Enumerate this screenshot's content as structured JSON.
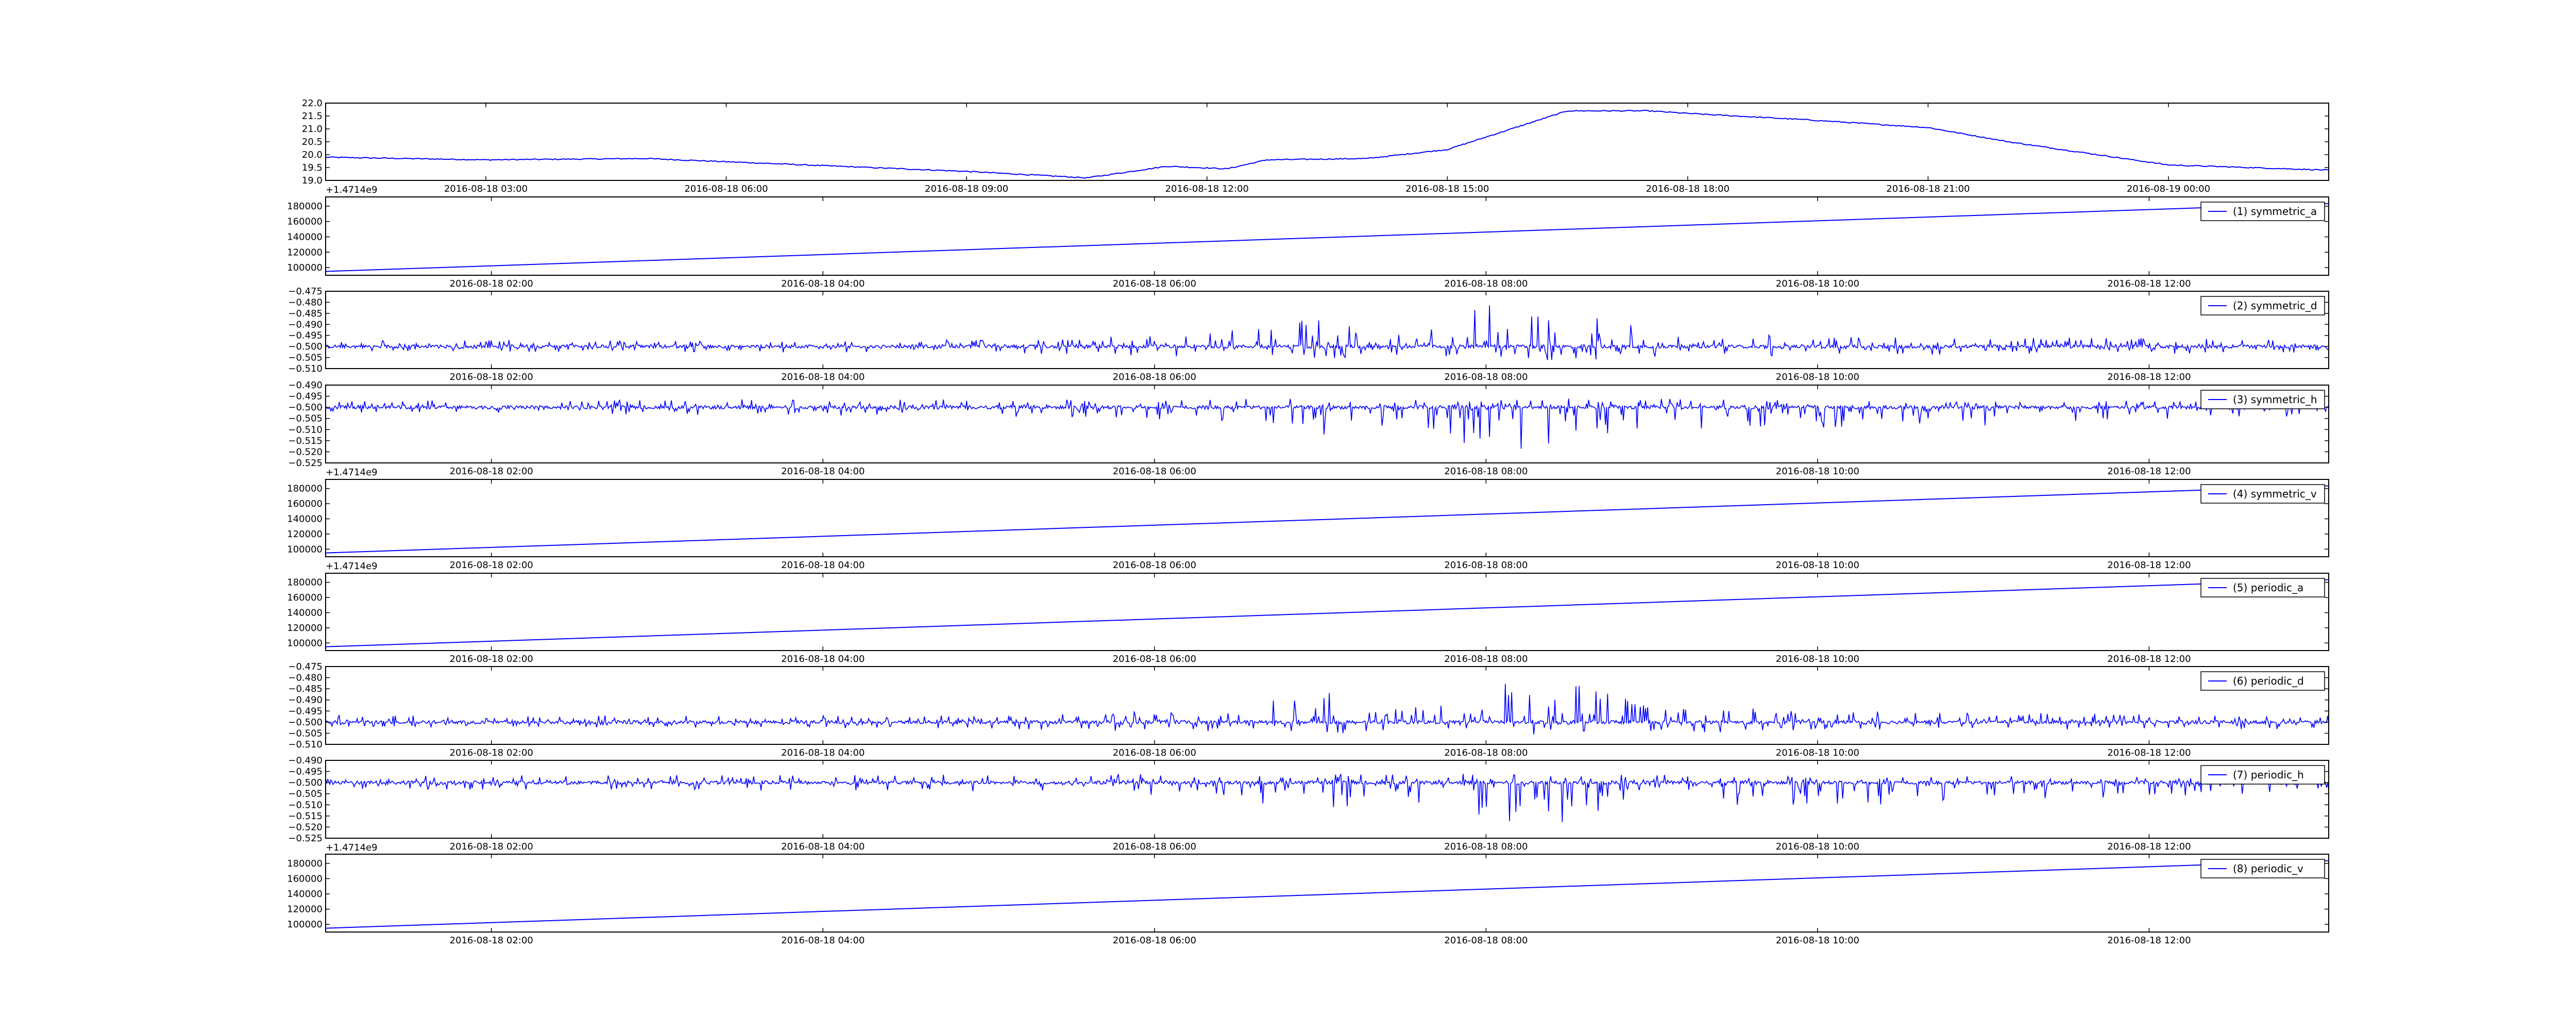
{
  "figure": {
    "background": "#ffffff",
    "line_color": "#0000ff",
    "frame_color": "#000000"
  },
  "chart_data": [
    {
      "type": "line",
      "title": "",
      "xlabel": "",
      "ylabel": "",
      "legend": null,
      "grid": false,
      "x_range": [
        "2016-08-18 01:00",
        "2016-08-19 02:00"
      ],
      "xticks": [
        "2016-08-18 03:00",
        "2016-08-18 06:00",
        "2016-08-18 09:00",
        "2016-08-18 12:00",
        "2016-08-18 15:00",
        "2016-08-18 18:00",
        "2016-08-18 21:00",
        "2016-08-19 00:00"
      ],
      "yticks": [
        "19.0",
        "19.5",
        "20.0",
        "20.5",
        "21.0",
        "21.5",
        "22.0"
      ],
      "ylim": [
        19.0,
        22.0
      ],
      "y_offset_label": "+1.4714e9",
      "series": [
        {
          "x": [
            "2016-08-18 01:00",
            "2016-08-18 03:00",
            "2016-08-18 05:00",
            "2016-08-18 07:00",
            "2016-08-18 09:00",
            "2016-08-18 10:30",
            "2016-08-18 11:30",
            "2016-08-18 12:15",
            "2016-08-18 12:45",
            "2016-08-18 14:00",
            "2016-08-18 15:00",
            "2016-08-18 15:45",
            "2016-08-18 16:30",
            "2016-08-18 17:30",
            "2016-08-18 18:00",
            "2016-08-18 19:30",
            "2016-08-18 21:00",
            "2016-08-18 22:00",
            "2016-08-19 00:00",
            "2016-08-19 02:00"
          ],
          "values": [
            19.9,
            19.8,
            19.85,
            19.6,
            19.35,
            19.1,
            19.55,
            19.45,
            19.8,
            19.85,
            20.2,
            20.95,
            21.7,
            21.7,
            21.6,
            21.35,
            21.05,
            20.5,
            19.6,
            19.4
          ]
        }
      ]
    },
    {
      "type": "line",
      "title": "",
      "xlabel": "",
      "ylabel": "",
      "grid": false,
      "x_range": [
        "2016-08-18 01:00",
        "2016-08-18 13:05"
      ],
      "xticks": [
        "2016-08-18 02:00",
        "2016-08-18 04:00",
        "2016-08-18 06:00",
        "2016-08-18 08:00",
        "2016-08-18 10:00",
        "2016-08-18 12:00"
      ],
      "yticks": [
        "100000",
        "120000",
        "140000",
        "160000",
        "180000"
      ],
      "ylim": [
        90000,
        192000
      ],
      "legend": {
        "placement": "upper right"
      },
      "series": [
        {
          "name": "(1) symmetric_a",
          "x": [
            "2016-08-18 01:00",
            "2016-08-18 13:05"
          ],
          "values": [
            95000,
            183500
          ]
        }
      ]
    },
    {
      "type": "line",
      "title": "",
      "xlabel": "",
      "ylabel": "",
      "grid": false,
      "x_range": [
        "2016-08-18 01:00",
        "2016-08-18 13:05"
      ],
      "xticks": [
        "2016-08-18 02:00",
        "2016-08-18 04:00",
        "2016-08-18 06:00",
        "2016-08-18 08:00",
        "2016-08-18 10:00",
        "2016-08-18 12:00"
      ],
      "yticks": [
        "−0.510",
        "−0.505",
        "−0.500",
        "−0.495",
        "−0.490",
        "−0.485",
        "−0.480",
        "−0.475"
      ],
      "ylim": [
        -0.51,
        -0.475
      ],
      "legend": {
        "placement": "upper right"
      },
      "series": [
        {
          "name": "(2) symmetric_d",
          "baseline": -0.5,
          "profile_x": [
            "2016-08-18 01:00",
            "2016-08-18 05:00",
            "2016-08-18 06:20",
            "2016-08-18 07:00",
            "2016-08-18 07:30",
            "2016-08-18 08:00",
            "2016-08-18 08:30",
            "2016-08-18 09:00",
            "2016-08-18 10:00",
            "2016-08-18 13:05"
          ],
          "up_extent": [
            0.003,
            0.003,
            0.006,
            0.014,
            0.006,
            0.019,
            0.018,
            0.008,
            0.005,
            0.003
          ],
          "down_extent": [
            0.002,
            0.003,
            0.005,
            0.006,
            0.004,
            0.006,
            0.007,
            0.005,
            0.004,
            0.003
          ]
        }
      ]
    },
    {
      "type": "line",
      "title": "",
      "xlabel": "",
      "ylabel": "",
      "grid": false,
      "x_range": [
        "2016-08-18 01:00",
        "2016-08-18 13:05"
      ],
      "xticks": [
        "2016-08-18 02:00",
        "2016-08-18 04:00",
        "2016-08-18 06:00",
        "2016-08-18 08:00",
        "2016-08-18 10:00",
        "2016-08-18 12:00"
      ],
      "yticks": [
        "−0.525",
        "−0.520",
        "−0.515",
        "−0.510",
        "−0.505",
        "−0.500",
        "−0.495",
        "−0.490"
      ],
      "ylim": [
        -0.525,
        -0.49
      ],
      "y_offset_label": "+1.4714e9",
      "legend": {
        "placement": "upper right"
      },
      "series": [
        {
          "name": "(3) symmetric_h",
          "baseline": -0.5,
          "profile_x": [
            "2016-08-18 01:00",
            "2016-08-18 05:00",
            "2016-08-18 06:20",
            "2016-08-18 07:00",
            "2016-08-18 07:30",
            "2016-08-18 08:00",
            "2016-08-18 08:30",
            "2016-08-18 09:00",
            "2016-08-18 10:00",
            "2016-08-18 13:05"
          ],
          "up_extent": [
            0.003,
            0.004,
            0.004,
            0.004,
            0.004,
            0.004,
            0.004,
            0.004,
            0.003,
            0.003
          ],
          "down_extent": [
            0.003,
            0.004,
            0.006,
            0.014,
            0.007,
            0.02,
            0.018,
            0.009,
            0.011,
            0.004
          ]
        }
      ]
    },
    {
      "type": "line",
      "title": "",
      "xlabel": "",
      "ylabel": "",
      "grid": false,
      "x_range": [
        "2016-08-18 01:00",
        "2016-08-18 13:05"
      ],
      "xticks": [
        "2016-08-18 02:00",
        "2016-08-18 04:00",
        "2016-08-18 06:00",
        "2016-08-18 08:00",
        "2016-08-18 10:00",
        "2016-08-18 12:00"
      ],
      "yticks": [
        "100000",
        "120000",
        "140000",
        "160000",
        "180000"
      ],
      "ylim": [
        90000,
        192000
      ],
      "y_offset_label": "+1.4714e9",
      "legend": {
        "placement": "upper right"
      },
      "series": [
        {
          "name": "(4) symmetric_v",
          "x": [
            "2016-08-18 01:00",
            "2016-08-18 13:05"
          ],
          "values": [
            95000,
            183500
          ]
        }
      ]
    },
    {
      "type": "line",
      "title": "",
      "xlabel": "",
      "ylabel": "",
      "grid": false,
      "x_range": [
        "2016-08-18 01:00",
        "2016-08-18 13:05"
      ],
      "xticks": [
        "2016-08-18 02:00",
        "2016-08-18 04:00",
        "2016-08-18 06:00",
        "2016-08-18 08:00",
        "2016-08-18 10:00",
        "2016-08-18 12:00"
      ],
      "yticks": [
        "100000",
        "120000",
        "140000",
        "160000",
        "180000"
      ],
      "ylim": [
        90000,
        192000
      ],
      "legend": {
        "placement": "upper right"
      },
      "series": [
        {
          "name": "(5) periodic_a",
          "x": [
            "2016-08-18 01:00",
            "2016-08-18 13:05"
          ],
          "values": [
            95000,
            183500
          ]
        }
      ]
    },
    {
      "type": "line",
      "title": "",
      "xlabel": "",
      "ylabel": "",
      "grid": false,
      "x_range": [
        "2016-08-18 01:00",
        "2016-08-18 13:05"
      ],
      "xticks": [
        "2016-08-18 02:00",
        "2016-08-18 04:00",
        "2016-08-18 06:00",
        "2016-08-18 08:00",
        "2016-08-18 10:00",
        "2016-08-18 12:00"
      ],
      "yticks": [
        "−0.510",
        "−0.505",
        "−0.500",
        "−0.495",
        "−0.490",
        "−0.485",
        "−0.480",
        "−0.475"
      ],
      "ylim": [
        -0.51,
        -0.475
      ],
      "legend": {
        "placement": "upper right"
      },
      "series": [
        {
          "name": "(6) periodic_d",
          "baseline": -0.5,
          "profile_x": [
            "2016-08-18 01:00",
            "2016-08-18 05:00",
            "2016-08-18 06:20",
            "2016-08-18 07:00",
            "2016-08-18 07:30",
            "2016-08-18 08:00",
            "2016-08-18 08:30",
            "2016-08-18 09:00",
            "2016-08-18 10:00",
            "2016-08-18 13:05"
          ],
          "up_extent": [
            0.003,
            0.003,
            0.006,
            0.014,
            0.006,
            0.019,
            0.018,
            0.008,
            0.005,
            0.003
          ],
          "down_extent": [
            0.002,
            0.003,
            0.005,
            0.006,
            0.004,
            0.006,
            0.007,
            0.005,
            0.004,
            0.003
          ]
        }
      ]
    },
    {
      "type": "line",
      "title": "",
      "xlabel": "",
      "ylabel": "",
      "grid": false,
      "x_range": [
        "2016-08-18 01:00",
        "2016-08-18 13:05"
      ],
      "xticks": [
        "2016-08-18 02:00",
        "2016-08-18 04:00",
        "2016-08-18 06:00",
        "2016-08-18 08:00",
        "2016-08-18 10:00",
        "2016-08-18 12:00"
      ],
      "yticks": [
        "−0.525",
        "−0.520",
        "−0.515",
        "−0.510",
        "−0.505",
        "−0.500",
        "−0.495",
        "−0.490"
      ],
      "ylim": [
        -0.525,
        -0.49
      ],
      "y_offset_label": "+1.4714e9",
      "legend": {
        "placement": "upper right"
      },
      "series": [
        {
          "name": "(7) periodic_h",
          "baseline": -0.5,
          "profile_x": [
            "2016-08-18 01:00",
            "2016-08-18 05:00",
            "2016-08-18 06:20",
            "2016-08-18 07:00",
            "2016-08-18 07:30",
            "2016-08-18 08:00",
            "2016-08-18 08:30",
            "2016-08-18 09:00",
            "2016-08-18 10:00",
            "2016-08-18 13:05"
          ],
          "up_extent": [
            0.003,
            0.004,
            0.004,
            0.004,
            0.004,
            0.004,
            0.004,
            0.004,
            0.003,
            0.003
          ],
          "down_extent": [
            0.003,
            0.004,
            0.006,
            0.014,
            0.007,
            0.02,
            0.018,
            0.009,
            0.011,
            0.004
          ]
        }
      ]
    },
    {
      "type": "line",
      "title": "",
      "xlabel": "",
      "ylabel": "",
      "grid": false,
      "x_range": [
        "2016-08-18 01:00",
        "2016-08-18 13:05"
      ],
      "xticks": [
        "2016-08-18 02:00",
        "2016-08-18 04:00",
        "2016-08-18 06:00",
        "2016-08-18 08:00",
        "2016-08-18 10:00",
        "2016-08-18 12:00"
      ],
      "yticks": [
        "100000",
        "120000",
        "140000",
        "160000",
        "180000"
      ],
      "ylim": [
        90000,
        192000
      ],
      "legend": {
        "placement": "upper right"
      },
      "series": [
        {
          "name": "(8) periodic_v",
          "x": [
            "2016-08-18 01:00",
            "2016-08-18 13:05"
          ],
          "values": [
            95000,
            183500
          ]
        }
      ]
    }
  ]
}
